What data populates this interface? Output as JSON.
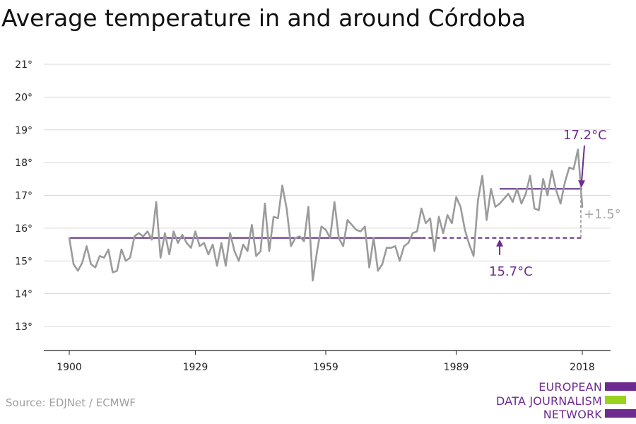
{
  "title": "Average temperature in and around Córdoba",
  "source": "Source: EDJNet / ECMWF",
  "logo": {
    "line1": "EUROPEAN",
    "line2": "DATA JOURNALISM",
    "line3": "NETWORK"
  },
  "colors": {
    "series": "#9b9b9b",
    "baseline": "#5b2a86",
    "accent": "#6d2b8f",
    "logo_green": "#9bd21f",
    "grid": "#d9d9d9"
  },
  "chart_data": {
    "type": "line",
    "title": "Average temperature in and around Córdoba",
    "xlim": [
      1900,
      2018
    ],
    "ylim": [
      12.3,
      21.2
    ],
    "x_ticks": [
      1900,
      1929,
      1959,
      1989,
      2018
    ],
    "y_ticks": [
      13,
      14,
      15,
      16,
      17,
      18,
      19,
      20,
      21
    ],
    "y_tick_labels": [
      "13°",
      "14°",
      "15°",
      "16°",
      "17°",
      "18°",
      "19°",
      "20°",
      "21°"
    ],
    "grid": true,
    "series": [
      {
        "start_year": 1900,
        "values": [
          15.7,
          14.9,
          14.7,
          14.95,
          15.45,
          14.9,
          14.8,
          15.15,
          15.1,
          15.35,
          14.65,
          14.7,
          15.35,
          15.0,
          15.1,
          15.75,
          15.85,
          15.75,
          15.9,
          15.65,
          16.8,
          15.1,
          15.85,
          15.2,
          15.9,
          15.55,
          15.8,
          15.55,
          15.4,
          15.9,
          15.45,
          15.55,
          15.2,
          15.5,
          14.85,
          15.55,
          14.85,
          15.85,
          15.3,
          15.0,
          15.5,
          15.3,
          16.1,
          15.15,
          15.3,
          16.75,
          15.3,
          16.35,
          16.3,
          17.3,
          16.6,
          15.45,
          15.7,
          15.75,
          15.6,
          16.65,
          14.4,
          15.3,
          16.05,
          15.95,
          15.7,
          16.8,
          15.7,
          15.45,
          16.25,
          16.1,
          15.95,
          15.9,
          16.05,
          14.8,
          15.7,
          14.7,
          14.9,
          15.4,
          15.4,
          15.45,
          15.0,
          15.45,
          15.55,
          15.85,
          15.9,
          16.6,
          16.15,
          16.3,
          15.3,
          16.35,
          15.85,
          16.4,
          16.15,
          16.95,
          16.65,
          15.95,
          15.5,
          15.15,
          16.85,
          17.6,
          16.25,
          17.2,
          16.65,
          16.75,
          16.9,
          17.05,
          16.8,
          17.2,
          16.75,
          17.05,
          17.6,
          16.6,
          16.55,
          17.5,
          17.0,
          17.75,
          17.15,
          16.75,
          17.4,
          17.85,
          17.8,
          18.4,
          16.65
        ]
      }
    ],
    "annotations": {
      "baseline_value": 15.7,
      "baseline_label": "15.7°C",
      "recent_value": 17.2,
      "recent_label": "17.2°C",
      "recent_start_year": 1999,
      "difference_label": "+1.5°",
      "baseline_end_year": 1981
    },
    "x_tick_labels": [
      "1900",
      "1929",
      "1959",
      "1989",
      "2018"
    ]
  }
}
